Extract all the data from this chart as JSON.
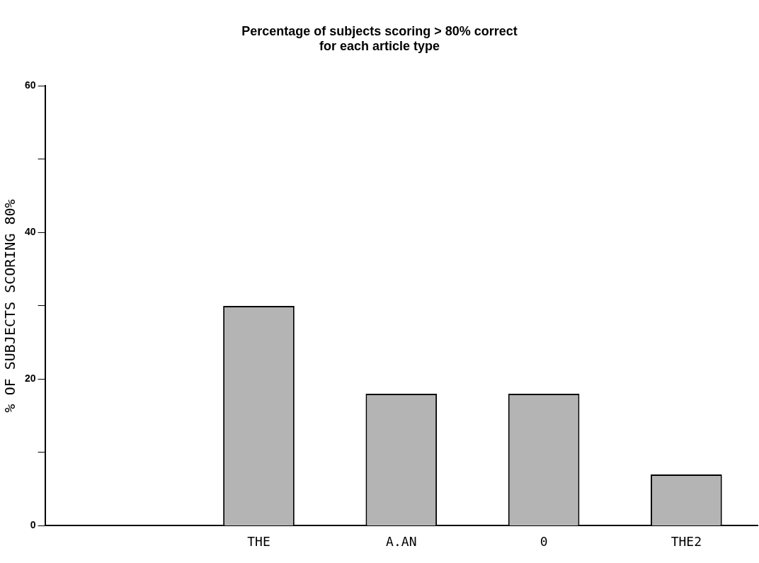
{
  "chart_data": {
    "type": "bar",
    "title": "Percentage of subjects scoring > 80% correct\nfor each article type",
    "ylabel": "% OF SUBJECTS SCORING 80%",
    "categories": [
      null,
      "THE",
      "A.AN",
      "0",
      "THE2"
    ],
    "values": [
      null,
      30,
      18,
      18,
      7
    ],
    "color": "#b4b4b4",
    "ylim": [
      0,
      60
    ],
    "yticks": [
      0,
      {
        "value": 10,
        "label": null
      },
      20,
      {
        "value": 30,
        "label": null
      },
      40,
      {
        "value": 50,
        "label": null
      },
      60
    ],
    "grid": false,
    "legend": false
  }
}
